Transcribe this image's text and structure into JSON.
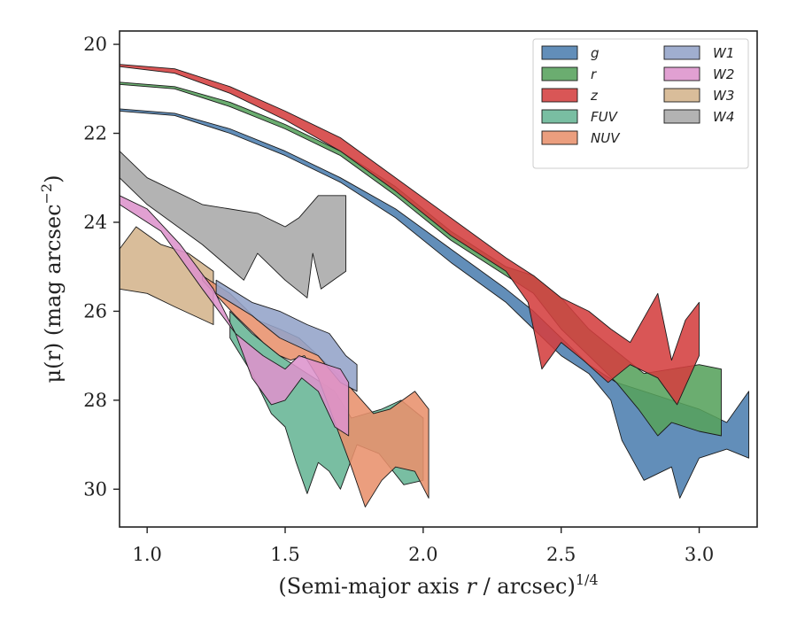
{
  "chart_data": {
    "type": "area",
    "title": "",
    "xlabel": "(Semi-major axis r / arcsec)",
    "xlabel_italic_part": "r",
    "xlabel_superscript": "1/4",
    "ylabel": "μ(r) (mag arcsec",
    "ylabel_superscript": "−2",
    "ylabel_close": ")",
    "xlim": [
      0.9,
      3.21
    ],
    "ylim": [
      30.85,
      19.7
    ],
    "y_inverted": true,
    "grid": false,
    "legend_position": "top-right",
    "legend_columns": 2,
    "x_ticks": [
      1.0,
      1.5,
      2.0,
      2.5,
      3.0
    ],
    "x_tick_labels": [
      "1.0",
      "1.5",
      "2.0",
      "2.5",
      "3.0"
    ],
    "y_ticks": [
      20,
      22,
      24,
      26,
      28,
      30
    ],
    "y_tick_labels": [
      "20",
      "22",
      "24",
      "26",
      "28",
      "30"
    ],
    "series": [
      {
        "name": "W4",
        "color": "#a9a9a9",
        "upper": [
          [
            0.9,
            22.4
          ],
          [
            1.0,
            23.0
          ],
          [
            1.2,
            23.6
          ],
          [
            1.4,
            23.8
          ],
          [
            1.5,
            24.1
          ],
          [
            1.55,
            23.9
          ],
          [
            1.62,
            23.4
          ],
          [
            1.72,
            23.4
          ]
        ],
        "lower": [
          [
            0.9,
            23.0
          ],
          [
            1.0,
            23.6
          ],
          [
            1.2,
            24.5
          ],
          [
            1.35,
            25.3
          ],
          [
            1.4,
            24.7
          ],
          [
            1.5,
            25.3
          ],
          [
            1.58,
            25.7
          ],
          [
            1.6,
            24.7
          ],
          [
            1.63,
            25.5
          ],
          [
            1.72,
            25.1
          ]
        ]
      },
      {
        "name": "W3",
        "color": "#d4b48c",
        "upper": [
          [
            0.9,
            24.6
          ],
          [
            0.96,
            24.1
          ],
          [
            1.05,
            24.5
          ],
          [
            1.15,
            24.7
          ],
          [
            1.24,
            25.1
          ]
        ],
        "lower": [
          [
            0.9,
            25.5
          ],
          [
            1.0,
            25.6
          ],
          [
            1.1,
            25.9
          ],
          [
            1.24,
            26.3
          ]
        ]
      },
      {
        "name": "FUV",
        "color": "#66b595",
        "upper": [
          [
            1.3,
            26.0
          ],
          [
            1.38,
            26.5
          ],
          [
            1.48,
            27.0
          ],
          [
            1.58,
            27.4
          ],
          [
            1.68,
            27.8
          ],
          [
            1.74,
            28.4
          ],
          [
            1.85,
            28.2
          ],
          [
            1.92,
            28.0
          ],
          [
            2.0,
            28.4
          ]
        ],
        "lower": [
          [
            1.3,
            26.6
          ],
          [
            1.38,
            27.4
          ],
          [
            1.45,
            28.3
          ],
          [
            1.5,
            28.6
          ],
          [
            1.54,
            29.4
          ],
          [
            1.58,
            30.1
          ],
          [
            1.62,
            29.4
          ],
          [
            1.66,
            29.6
          ],
          [
            1.7,
            30.0
          ],
          [
            1.76,
            29.0
          ],
          [
            1.84,
            29.2
          ],
          [
            1.93,
            29.9
          ],
          [
            2.0,
            29.8
          ]
        ]
      },
      {
        "name": "NUV",
        "color": "#e8916c",
        "upper": [
          [
            1.2,
            25.2
          ],
          [
            1.3,
            25.6
          ],
          [
            1.4,
            26.2
          ],
          [
            1.48,
            26.4
          ],
          [
            1.55,
            26.6
          ],
          [
            1.62,
            27.0
          ],
          [
            1.72,
            27.6
          ],
          [
            1.82,
            28.3
          ],
          [
            1.88,
            28.2
          ],
          [
            1.97,
            27.8
          ],
          [
            2.02,
            28.2
          ]
        ],
        "lower": [
          [
            1.2,
            25.3
          ],
          [
            1.32,
            26.1
          ],
          [
            1.42,
            26.7
          ],
          [
            1.48,
            27.0
          ],
          [
            1.52,
            27.1
          ],
          [
            1.57,
            27.0
          ],
          [
            1.62,
            27.5
          ],
          [
            1.68,
            28.5
          ],
          [
            1.74,
            29.5
          ],
          [
            1.79,
            30.4
          ],
          [
            1.85,
            29.8
          ],
          [
            1.9,
            29.5
          ],
          [
            1.97,
            29.6
          ],
          [
            2.02,
            30.2
          ]
        ]
      },
      {
        "name": "W1",
        "color": "#93a3c8",
        "upper": [
          [
            1.25,
            25.3
          ],
          [
            1.38,
            25.8
          ],
          [
            1.48,
            26.0
          ],
          [
            1.58,
            26.3
          ],
          [
            1.66,
            26.5
          ],
          [
            1.72,
            27.0
          ],
          [
            1.76,
            27.2
          ]
        ],
        "lower": [
          [
            1.25,
            25.6
          ],
          [
            1.38,
            26.1
          ],
          [
            1.48,
            26.6
          ],
          [
            1.55,
            26.8
          ],
          [
            1.62,
            27.0
          ],
          [
            1.7,
            27.6
          ],
          [
            1.76,
            27.8
          ]
        ]
      },
      {
        "name": "W2",
        "color": "#dd93cc",
        "upper": [
          [
            0.9,
            23.4
          ],
          [
            1.0,
            23.7
          ],
          [
            1.12,
            24.5
          ],
          [
            1.24,
            25.5
          ],
          [
            1.32,
            26.5
          ],
          [
            1.42,
            27.0
          ],
          [
            1.5,
            27.3
          ],
          [
            1.55,
            27.0
          ],
          [
            1.6,
            27.1
          ],
          [
            1.7,
            27.3
          ],
          [
            1.73,
            27.6
          ]
        ],
        "lower": [
          [
            0.9,
            23.6
          ],
          [
            1.05,
            24.2
          ],
          [
            1.2,
            25.5
          ],
          [
            1.32,
            26.5
          ],
          [
            1.38,
            27.5
          ],
          [
            1.45,
            28.1
          ],
          [
            1.5,
            28.0
          ],
          [
            1.56,
            27.5
          ],
          [
            1.62,
            27.8
          ],
          [
            1.68,
            28.6
          ],
          [
            1.73,
            28.8
          ]
        ]
      },
      {
        "name": "g",
        "color": "#4c7eaf",
        "upper": [
          [
            0.9,
            21.45
          ],
          [
            1.1,
            21.55
          ],
          [
            1.3,
            21.9
          ],
          [
            1.5,
            22.4
          ],
          [
            1.7,
            23.0
          ],
          [
            1.9,
            23.7
          ],
          [
            2.1,
            24.6
          ],
          [
            2.3,
            25.5
          ],
          [
            2.4,
            26.0
          ],
          [
            2.5,
            26.6
          ],
          [
            2.6,
            27.2
          ],
          [
            2.7,
            27.6
          ],
          [
            2.8,
            27.8
          ],
          [
            2.9,
            28.0
          ],
          [
            3.0,
            28.2
          ],
          [
            3.1,
            28.5
          ],
          [
            3.18,
            27.8
          ]
        ],
        "lower": [
          [
            0.9,
            21.5
          ],
          [
            1.1,
            21.6
          ],
          [
            1.3,
            22.0
          ],
          [
            1.5,
            22.5
          ],
          [
            1.7,
            23.1
          ],
          [
            1.9,
            23.9
          ],
          [
            2.1,
            24.9
          ],
          [
            2.3,
            25.8
          ],
          [
            2.4,
            26.4
          ],
          [
            2.5,
            27.0
          ],
          [
            2.6,
            27.4
          ],
          [
            2.68,
            28.0
          ],
          [
            2.72,
            28.9
          ],
          [
            2.8,
            29.8
          ],
          [
            2.9,
            29.5
          ],
          [
            2.93,
            30.2
          ],
          [
            3.0,
            29.3
          ],
          [
            3.1,
            29.1
          ],
          [
            3.18,
            29.3
          ]
        ]
      },
      {
        "name": "r",
        "color": "#56a25c",
        "upper": [
          [
            0.9,
            20.85
          ],
          [
            1.1,
            20.95
          ],
          [
            1.3,
            21.3
          ],
          [
            1.5,
            21.8
          ],
          [
            1.7,
            22.4
          ],
          [
            1.9,
            23.2
          ],
          [
            2.1,
            24.2
          ],
          [
            2.3,
            25.0
          ],
          [
            2.4,
            25.2
          ],
          [
            2.5,
            25.7
          ],
          [
            2.6,
            26.4
          ],
          [
            2.7,
            26.9
          ],
          [
            2.8,
            27.4
          ],
          [
            2.9,
            27.3
          ],
          [
            3.0,
            27.2
          ],
          [
            3.08,
            27.3
          ]
        ],
        "lower": [
          [
            0.9,
            20.9
          ],
          [
            1.1,
            21.0
          ],
          [
            1.3,
            21.4
          ],
          [
            1.5,
            21.9
          ],
          [
            1.7,
            22.5
          ],
          [
            1.9,
            23.4
          ],
          [
            2.1,
            24.4
          ],
          [
            2.3,
            25.2
          ],
          [
            2.4,
            25.6
          ],
          [
            2.5,
            26.4
          ],
          [
            2.6,
            27.0
          ],
          [
            2.7,
            27.6
          ],
          [
            2.78,
            28.2
          ],
          [
            2.85,
            28.8
          ],
          [
            2.9,
            28.5
          ],
          [
            3.0,
            28.7
          ],
          [
            3.08,
            28.8
          ]
        ]
      },
      {
        "name": "z",
        "color": "#d43f3f",
        "upper": [
          [
            0.9,
            20.45
          ],
          [
            1.1,
            20.55
          ],
          [
            1.3,
            20.95
          ],
          [
            1.5,
            21.5
          ],
          [
            1.7,
            22.1
          ],
          [
            1.9,
            23.0
          ],
          [
            2.1,
            23.9
          ],
          [
            2.3,
            24.8
          ],
          [
            2.4,
            25.2
          ],
          [
            2.5,
            25.7
          ],
          [
            2.6,
            26.0
          ],
          [
            2.68,
            26.4
          ],
          [
            2.75,
            26.7
          ],
          [
            2.85,
            25.6
          ],
          [
            2.9,
            27.1
          ],
          [
            2.95,
            26.2
          ],
          [
            3.0,
            25.8
          ]
        ],
        "lower": [
          [
            0.9,
            20.5
          ],
          [
            1.1,
            20.65
          ],
          [
            1.3,
            21.1
          ],
          [
            1.5,
            21.7
          ],
          [
            1.7,
            22.4
          ],
          [
            1.9,
            23.3
          ],
          [
            2.1,
            24.3
          ],
          [
            2.3,
            25.1
          ],
          [
            2.38,
            25.8
          ],
          [
            2.43,
            27.3
          ],
          [
            2.5,
            26.7
          ],
          [
            2.58,
            27.1
          ],
          [
            2.67,
            27.6
          ],
          [
            2.75,
            27.2
          ],
          [
            2.85,
            27.5
          ],
          [
            2.92,
            28.1
          ],
          [
            3.0,
            27.0
          ]
        ]
      }
    ],
    "legend_order": [
      "g",
      "r",
      "z",
      "FUV",
      "NUV",
      "W1",
      "W2",
      "W3",
      "W4"
    ]
  }
}
